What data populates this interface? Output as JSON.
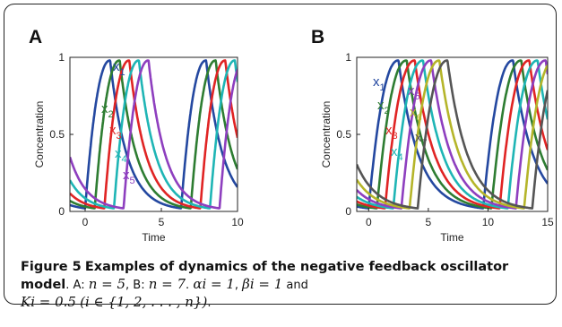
{
  "caption": {
    "figure_label": "Figure 5",
    "title": "Examples of dynamics of the negative feedback oscillator model",
    "line1_rest": ". A: ",
    "n_a": "n = 5",
    "sep1": ", B: ",
    "n_b": "n = 7",
    "sep2": ". ",
    "alpha": "αi = 1",
    "sep3": ", ",
    "beta": "βi = 1",
    "and": " and",
    "k": "Ki = 0.5",
    "index_set": "(i ∈ {1, 2, . . . , n})",
    "end": "."
  },
  "chart_data": [
    {
      "type": "line",
      "panel_label": "A",
      "xlabel": "Time",
      "ylabel": "Concentration",
      "xlim": [
        -1,
        10
      ],
      "ylim": [
        0,
        1
      ],
      "xticks": [
        0,
        5,
        10
      ],
      "yticks": [
        0,
        0.5,
        1
      ],
      "grid": false,
      "period": 6.3,
      "series": [
        {
          "name": "x1",
          "color": "#2448a0",
          "phase": 0.0
        },
        {
          "name": "x2",
          "color": "#2e7d32",
          "phase": 0.63
        },
        {
          "name": "x3",
          "color": "#e02424",
          "phase": 1.26
        },
        {
          "name": "x4",
          "color": "#1fb5b5",
          "phase": 1.89
        },
        {
          "name": "x5",
          "color": "#8e3fbf",
          "phase": 2.52
        }
      ],
      "series_labels": [
        "x1",
        "x2",
        "x3",
        "x4",
        "x5"
      ]
    },
    {
      "type": "line",
      "panel_label": "B",
      "xlabel": "Time",
      "ylabel": "Concentration",
      "xlim": [
        -1,
        15
      ],
      "ylim": [
        0,
        1
      ],
      "xticks": [
        0,
        5,
        10,
        15
      ],
      "yticks": [
        0,
        0.5,
        1
      ],
      "grid": false,
      "period": 9.6,
      "series": [
        {
          "name": "x1",
          "color": "#2448a0",
          "phase": 0.0
        },
        {
          "name": "x2",
          "color": "#2e7d32",
          "phase": 0.69
        },
        {
          "name": "x3",
          "color": "#e02424",
          "phase": 1.37
        },
        {
          "name": "x4",
          "color": "#1fb5b5",
          "phase": 2.06
        },
        {
          "name": "x5",
          "color": "#8e3fbf",
          "phase": 2.74
        },
        {
          "name": "x6",
          "color": "#b5b52a",
          "phase": 3.43
        },
        {
          "name": "x7",
          "color": "#555555",
          "phase": 4.11
        }
      ],
      "series_labels": [
        "x1",
        "x2",
        "x3",
        "x4",
        "x5",
        "x6",
        "x7"
      ]
    }
  ]
}
